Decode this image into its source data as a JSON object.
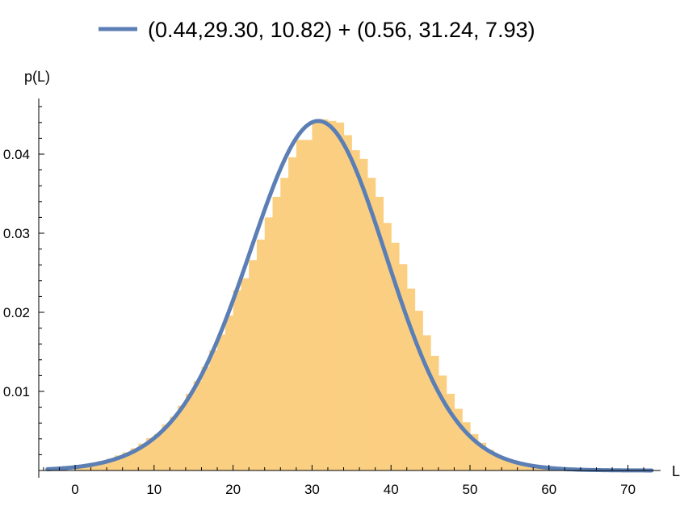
{
  "chart_data": {
    "type": "bar",
    "legend": {
      "label": "(0.44,29.30, 10.82) + (0.56, 31.24, 7.93)",
      "color": "#5b7fb5",
      "placement": "top-center"
    },
    "xlabel": "L",
    "ylabel": "p(L)",
    "xlim": [
      -5,
      75
    ],
    "ylim": [
      0,
      0.046
    ],
    "xticks": [
      "0",
      "10",
      "20",
      "30",
      "40",
      "50",
      "60",
      "70"
    ],
    "yticks": [
      "0.01",
      "0.02",
      "0.03",
      "0.04"
    ],
    "histogram": {
      "color": "#fbcf82",
      "bin_width": 1,
      "bin_centers": [
        0.5,
        1.5,
        2.5,
        3.5,
        4.5,
        5.5,
        6.5,
        7.5,
        8.5,
        9.5,
        10.5,
        11.5,
        12.5,
        13.5,
        14.5,
        15.5,
        16.5,
        17.5,
        18.5,
        19.5,
        20.5,
        21.5,
        22.5,
        23.5,
        24.5,
        25.5,
        26.5,
        27.5,
        28.5,
        29.5,
        30.5,
        31.5,
        32.5,
        33.5,
        34.5,
        35.5,
        36.5,
        37.5,
        38.5,
        39.5,
        40.5,
        41.5,
        42.5,
        43.5,
        44.5,
        45.5,
        46.5,
        47.5,
        48.5,
        49.5,
        50.5,
        51.5,
        52.5,
        53.5,
        54.5,
        55.5,
        56.5,
        57.5,
        58.5,
        59.5,
        60.5,
        61.5,
        62.5,
        63.5,
        64.5,
        65.5,
        66.5,
        67.5,
        68.5,
        69.5,
        70.5,
        71.5
      ],
      "values": [
        0.0007,
        0.0008,
        0.001,
        0.0012,
        0.0015,
        0.0019,
        0.0023,
        0.0028,
        0.0034,
        0.0041,
        0.0046,
        0.0058,
        0.0068,
        0.0082,
        0.0097,
        0.0113,
        0.0131,
        0.0152,
        0.0172,
        0.0196,
        0.0228,
        0.0243,
        0.0266,
        0.0292,
        0.032,
        0.0346,
        0.037,
        0.0396,
        0.0418,
        0.0418,
        0.044,
        0.0444,
        0.0442,
        0.044,
        0.0424,
        0.0405,
        0.0394,
        0.037,
        0.0346,
        0.0313,
        0.0288,
        0.0261,
        0.023,
        0.0202,
        0.0171,
        0.0145,
        0.012,
        0.0097,
        0.0078,
        0.0061,
        0.0046,
        0.0035,
        0.0026,
        0.0019,
        0.0014,
        0.001,
        0.0007,
        0.0005,
        0.0004,
        0.0003,
        0.0002,
        0.0002,
        0.0001,
        0.0001,
        0.0001,
        0.0001,
        0.0001,
        0.0001,
        0.0001,
        0.0001,
        0.0001,
        0.0001
      ]
    },
    "fit": {
      "type": "line",
      "components": [
        {
          "weight": 0.44,
          "mean": 29.3,
          "sd": 10.82
        },
        {
          "weight": 0.56,
          "mean": 31.24,
          "sd": 7.93
        }
      ],
      "x_range": [
        -3.5,
        73
      ],
      "color": "#5b7fb5"
    }
  }
}
